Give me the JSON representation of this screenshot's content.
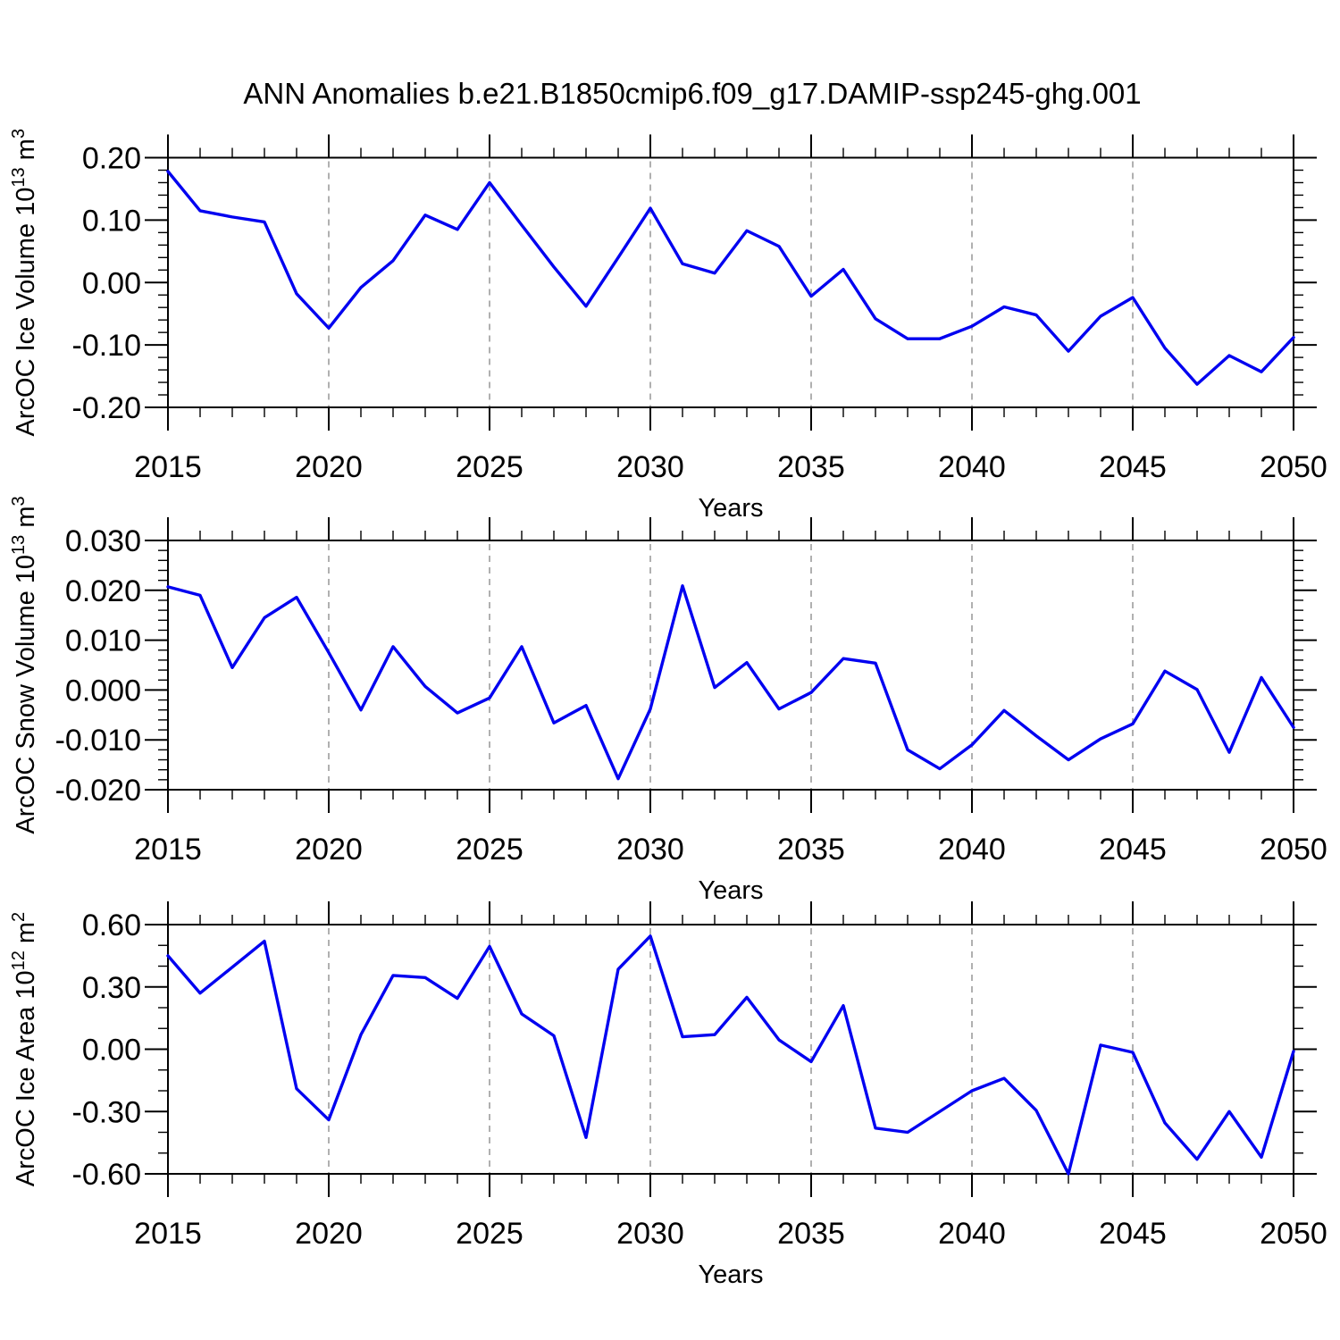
{
  "title": "ANN Anomalies b.e21.B1850cmip6.f09_g17.DAMIP-ssp245-ghg.001",
  "colors": {
    "line": "#0000f0",
    "grid": "#b0b0b0",
    "axis": "#000000",
    "text": "#000000",
    "background": "#ffffff"
  },
  "x": {
    "label": "Years",
    "years": [
      2015,
      2016,
      2017,
      2018,
      2019,
      2020,
      2021,
      2022,
      2023,
      2024,
      2025,
      2026,
      2027,
      2028,
      2029,
      2030,
      2031,
      2032,
      2033,
      2034,
      2035,
      2036,
      2037,
      2038,
      2039,
      2040,
      2041,
      2042,
      2043,
      2044,
      2045,
      2046,
      2047,
      2048,
      2049,
      2050
    ],
    "ticks": [
      {
        "v": 2015,
        "label": "2015"
      },
      {
        "v": 2020,
        "label": "2020"
      },
      {
        "v": 2025,
        "label": "2025"
      },
      {
        "v": 2030,
        "label": "2030"
      },
      {
        "v": 2035,
        "label": "2035"
      },
      {
        "v": 2040,
        "label": "2040"
      },
      {
        "v": 2045,
        "label": "2045"
      },
      {
        "v": 2050,
        "label": "2050"
      }
    ],
    "grid_years": [
      2020,
      2025,
      2030,
      2035,
      2040,
      2045
    ]
  },
  "chart_data": [
    {
      "type": "line",
      "title": "ANN Anomalies b.e21.B1850cmip6.f09_g17.DAMIP-ssp245-ghg.001",
      "ylabel": "ArcOC Ice Volume 10^13 m^3",
      "ylabel_parts": [
        {
          "t": "ArcOC Ice Volume 10",
          "sup": false
        },
        {
          "t": "13",
          "sup": true
        },
        {
          "t": " m",
          "sup": false
        },
        {
          "t": "3",
          "sup": true
        }
      ],
      "xlabel": "Years",
      "ylim": [
        -0.2,
        0.2
      ],
      "y_minor_step": 0.02,
      "grid": "vertical-dashed",
      "legend": "none",
      "yticks": [
        {
          "v": 0.2,
          "label": "0.20"
        },
        {
          "v": 0.1,
          "label": "0.10"
        },
        {
          "v": 0.0,
          "label": "0.00"
        },
        {
          "v": -0.1,
          "label": "-0.10"
        },
        {
          "v": -0.2,
          "label": "-0.20"
        }
      ],
      "values": [
        0.178,
        0.115,
        0.105,
        0.097,
        -0.018,
        -0.073,
        -0.008,
        0.035,
        0.108,
        0.085,
        0.16,
        0.092,
        0.025,
        -0.038,
        0.04,
        0.119,
        0.03,
        0.015,
        0.083,
        0.058,
        -0.022,
        0.021,
        -0.058,
        -0.09,
        -0.09,
        -0.07,
        -0.039,
        -0.052,
        -0.11,
        -0.054,
        -0.024,
        -0.105,
        -0.163,
        -0.117,
        -0.143,
        -0.088
      ]
    },
    {
      "type": "line",
      "title": "",
      "ylabel": "ArcOC Snow Volume 10^13 m^3",
      "ylabel_parts": [
        {
          "t": "ArcOC Snow Volume 10",
          "sup": false
        },
        {
          "t": "13",
          "sup": true
        },
        {
          "t": " m",
          "sup": false
        },
        {
          "t": "3",
          "sup": true
        }
      ],
      "xlabel": "Years",
      "ylim": [
        -0.02,
        0.03
      ],
      "y_minor_step": 0.002,
      "grid": "vertical-dashed",
      "legend": "none",
      "yticks": [
        {
          "v": 0.03,
          "label": "0.030"
        },
        {
          "v": 0.02,
          "label": "0.020"
        },
        {
          "v": 0.01,
          "label": "0.010"
        },
        {
          "v": 0.0,
          "label": "0.000"
        },
        {
          "v": -0.01,
          "label": "-0.010"
        },
        {
          "v": -0.02,
          "label": "-0.020"
        }
      ],
      "values": [
        0.0207,
        0.019,
        0.0045,
        0.0145,
        0.0186,
        0.0075,
        -0.004,
        0.0087,
        0.0007,
        -0.0046,
        -0.0016,
        0.0087,
        -0.0066,
        -0.0031,
        -0.0178,
        -0.0038,
        0.0209,
        0.0005,
        0.0055,
        -0.0038,
        -0.0005,
        0.0063,
        0.0054,
        -0.012,
        -0.0158,
        -0.011,
        -0.0041,
        -0.0092,
        -0.014,
        -0.0098,
        -0.0068,
        0.0038,
        0.0001,
        -0.0125,
        0.0025,
        -0.0075
      ]
    },
    {
      "type": "line",
      "title": "",
      "ylabel": "ArcOC Ice Area 10^12 m^2",
      "ylabel_parts": [
        {
          "t": "ArcOC Ice Area 10",
          "sup": false
        },
        {
          "t": "12",
          "sup": true
        },
        {
          "t": " m",
          "sup": false
        },
        {
          "t": "2",
          "sup": true
        }
      ],
      "xlabel": "Years",
      "ylim": [
        -0.6,
        0.6
      ],
      "y_minor_step": 0.1,
      "grid": "vertical-dashed",
      "legend": "none",
      "yticks": [
        {
          "v": 0.6,
          "label": "0.60"
        },
        {
          "v": 0.3,
          "label": "0.30"
        },
        {
          "v": 0.0,
          "label": "0.00"
        },
        {
          "v": -0.3,
          "label": "-0.30"
        },
        {
          "v": -0.6,
          "label": "-0.60"
        }
      ],
      "values": [
        0.45,
        0.27,
        0.395,
        0.52,
        -0.19,
        -0.34,
        0.07,
        0.355,
        0.345,
        0.245,
        0.495,
        0.17,
        0.065,
        -0.425,
        0.385,
        0.545,
        0.06,
        0.07,
        0.25,
        0.045,
        -0.06,
        0.21,
        -0.38,
        -0.4,
        -0.3,
        -0.2,
        -0.14,
        -0.295,
        -0.6,
        0.02,
        -0.015,
        -0.355,
        -0.53,
        -0.3,
        -0.52,
        -0.01
      ]
    }
  ]
}
